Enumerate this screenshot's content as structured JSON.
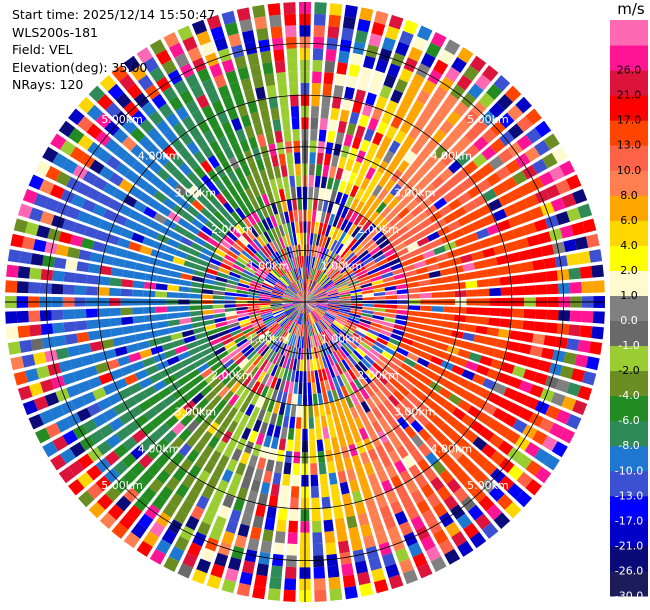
{
  "header": {
    "start_time": "Start time: 2025/12/14 15:50:47",
    "instrument": "WLS200s-181",
    "field": "Field: VEL",
    "elevation": "Elevation(deg): 35.00",
    "nrays": "NRays: 120"
  },
  "chart_data": {
    "type": "heatmap",
    "projection": "polar-ppi",
    "field": "VEL",
    "units": "m/s",
    "n_rays": 120,
    "range_rings_km": [
      1,
      2,
      3,
      4,
      5
    ],
    "range_ring_labels": [
      "1.00km",
      "2.00km",
      "3.00km",
      "4.00km",
      "5.00km"
    ],
    "max_range_km": 5.8,
    "colorbar": {
      "unit_label": "m/s",
      "levels": [
        -30.0,
        -26.0,
        -21.0,
        -17.0,
        -13.0,
        -10.0,
        -8.0,
        -6.0,
        -4.0,
        -2.0,
        -1.0,
        0.0,
        1.0,
        2.0,
        4.0,
        6.0,
        8.0,
        10.0,
        13.0,
        17.0,
        21.0,
        26.0
      ],
      "tick_labels": [
        "-30.0",
        "-26.0",
        "-21.0",
        "-17.0",
        "-13.0",
        "-10.0",
        "-8.0",
        "-6.0",
        "-4.0",
        "-2.0",
        "-1.0",
        "0.0",
        "1.0",
        "2.0",
        "4.0",
        "6.0",
        "8.0",
        "10.0",
        "13.0",
        "17.0",
        "21.0",
        "26.0"
      ],
      "colors": [
        "#1c1c5a",
        "#0a0a78",
        "#0000c8",
        "#0000ff",
        "#3c50d2",
        "#1e78d2",
        "#2e8b57",
        "#228b22",
        "#6b8e23",
        "#9acd32",
        "#696969",
        "#808080",
        "#fffacd",
        "#ffff00",
        "#ffd700",
        "#ffa500",
        "#ff7f50",
        "#ff6347",
        "#ff4500",
        "#ff0000",
        "#dc143c",
        "#ff1493",
        "#ff69b4"
      ]
    },
    "velocity_pattern": {
      "azimuth_of_max_positive_deg": 100,
      "max_positive_ms": 14,
      "max_negative_ms": -13,
      "description_is_visual_only": true
    }
  }
}
